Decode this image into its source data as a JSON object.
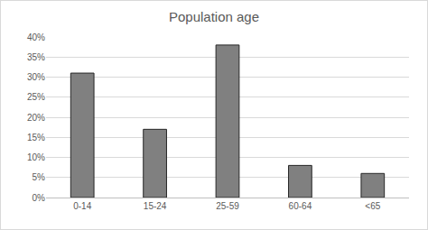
{
  "chart_data": {
    "type": "bar",
    "title": "Population age",
    "categories": [
      "0-14",
      "15-24",
      "25-59",
      "60-64",
      "<65"
    ],
    "values": [
      31,
      17,
      38,
      8,
      6
    ],
    "color": "#808080",
    "ylim": [
      0,
      40
    ],
    "yticks": [
      {
        "value": 0,
        "label": "0%"
      },
      {
        "value": 5,
        "label": "5%"
      },
      {
        "value": 10,
        "label": "10%"
      },
      {
        "value": 15,
        "label": "15%"
      },
      {
        "value": 20,
        "label": "20%"
      },
      {
        "value": 25,
        "label": "25%"
      },
      {
        "value": 30,
        "label": "30%"
      },
      {
        "value": 35,
        "label": "35%"
      },
      {
        "value": 40,
        "label": "40%"
      }
    ],
    "grid": true
  }
}
